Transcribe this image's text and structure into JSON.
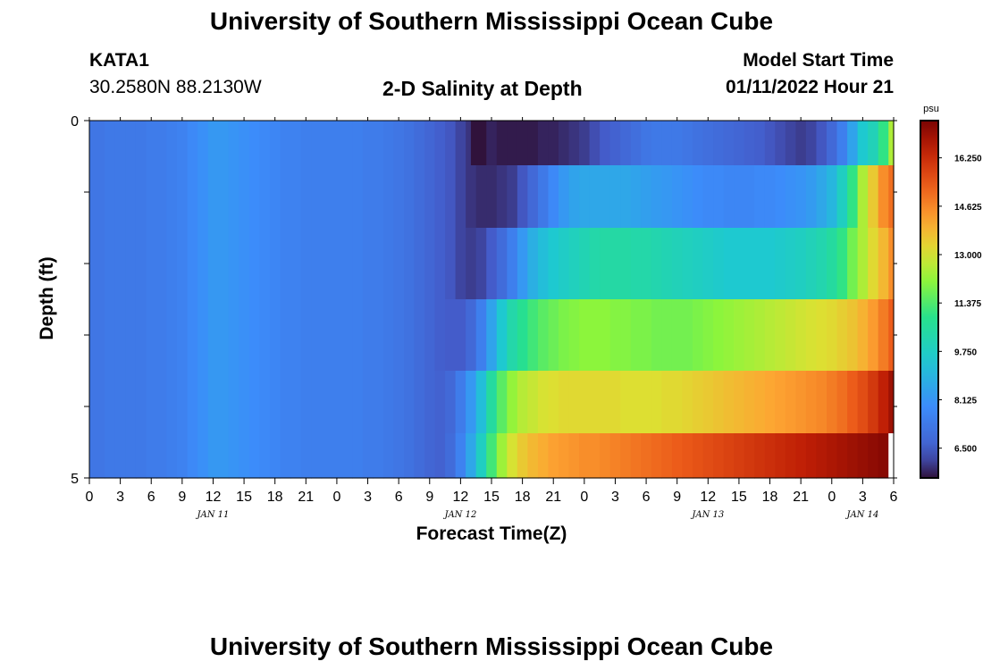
{
  "header": {
    "title": "University of Southern Mississippi Ocean Cube",
    "station_id": "KATA1",
    "station_coords": "30.2580N  88.2130W",
    "plot_title": "2-D Salinity at Depth",
    "model_start_label": "Model Start Time",
    "model_start_value": "01/11/2022 Hour 21"
  },
  "footer": {
    "title_repeat": "University of Southern Mississippi Ocean Cube"
  },
  "chart_data": {
    "type": "heatmap",
    "title": "2-D Salinity at Depth",
    "xlabel": "Forecast Time(Z)",
    "ylabel": "Depth (ft)",
    "colorbar_unit": "psu",
    "x_tick_labels": [
      "0",
      "3",
      "6",
      "9",
      "12",
      "15",
      "18",
      "21",
      "0",
      "3",
      "6",
      "9",
      "12",
      "15",
      "18",
      "21",
      "0",
      "3",
      "6",
      "9",
      "12",
      "15",
      "18",
      "21",
      "0",
      "3",
      "6"
    ],
    "day_labels": [
      {
        "label": "JAN 11",
        "hour": 12
      },
      {
        "label": "JAN 12",
        "hour": 36
      },
      {
        "label": "JAN 13",
        "hour": 60
      },
      {
        "label": "JAN 14",
        "hour": 75
      }
    ],
    "x_range_hours": [
      0,
      78
    ],
    "y_ticks": [
      "0",
      "5"
    ],
    "y_range_ft": [
      0,
      5
    ],
    "colorbar_ticks": [
      "16.250",
      "14.625",
      "13.000",
      "11.375",
      "9.750",
      "8.125",
      "6.500"
    ],
    "colorbar_range": [
      5.5,
      17.5
    ],
    "depth_layers_ft": [
      0.25,
      1.0,
      2.0,
      3.0,
      4.0,
      4.75
    ],
    "time_hours": [
      0,
      1,
      2,
      3,
      4,
      5,
      6,
      7,
      8,
      9,
      10,
      11,
      12,
      13,
      14,
      15,
      16,
      17,
      18,
      19,
      20,
      21,
      22,
      23,
      24,
      25,
      26,
      27,
      28,
      29,
      30,
      31,
      32,
      33,
      34,
      35,
      36,
      37,
      38,
      39,
      40,
      41,
      42,
      43,
      44,
      45,
      46,
      47,
      48,
      49,
      50,
      51,
      52,
      53,
      54,
      55,
      56,
      57,
      58,
      59,
      60,
      61,
      62,
      63,
      64,
      65,
      66,
      67,
      68,
      69,
      70,
      71,
      72,
      73,
      74,
      75,
      76,
      77,
      78
    ],
    "salinity": [
      [
        7.2,
        7.2,
        7.3,
        7.3,
        7.3,
        7.3,
        7.4,
        7.4,
        7.5,
        7.6,
        7.8,
        8.0,
        8.2,
        8.2,
        8.1,
        8.0,
        7.9,
        7.8,
        7.7,
        7.6,
        7.6,
        7.5,
        7.5,
        7.5,
        7.5,
        7.5,
        7.5,
        7.4,
        7.4,
        7.3,
        7.2,
        7.1,
        6.9,
        6.7,
        6.5,
        6.3,
        6.1,
        5.9,
        5.7,
        5.7,
        5.6,
        5.6,
        5.6,
        5.6,
        5.7,
        5.7,
        5.8,
        5.9,
        6.0,
        6.2,
        6.4,
        6.6,
        6.8,
        7.0,
        7.2,
        7.3,
        7.3,
        7.3,
        7.2,
        7.1,
        7.0,
        6.9,
        6.8,
        6.7,
        6.6,
        6.5,
        6.3,
        6.2,
        6.1,
        6.0,
        6.1,
        6.3,
        6.8,
        7.5,
        8.5,
        9.5,
        10.0,
        11.0,
        12.5
      ],
      [
        7.2,
        7.2,
        7.3,
        7.3,
        7.3,
        7.3,
        7.4,
        7.4,
        7.5,
        7.6,
        7.8,
        8.0,
        8.2,
        8.2,
        8.1,
        8.0,
        7.9,
        7.8,
        7.7,
        7.6,
        7.6,
        7.5,
        7.5,
        7.5,
        7.5,
        7.5,
        7.5,
        7.4,
        7.4,
        7.3,
        7.2,
        7.1,
        6.9,
        6.7,
        6.5,
        6.3,
        6.1,
        5.9,
        5.8,
        5.8,
        5.9,
        6.0,
        6.3,
        6.8,
        7.3,
        7.8,
        8.2,
        8.5,
        8.6,
        8.6,
        8.6,
        8.6,
        8.6,
        8.5,
        8.4,
        8.3,
        8.2,
        8.1,
        8.0,
        7.9,
        7.8,
        7.8,
        7.7,
        7.7,
        7.7,
        7.8,
        7.8,
        7.9,
        8.0,
        8.1,
        8.3,
        8.6,
        9.0,
        9.8,
        11.0,
        12.5,
        13.5,
        14.5,
        15.0
      ],
      [
        7.2,
        7.2,
        7.3,
        7.3,
        7.3,
        7.3,
        7.4,
        7.4,
        7.5,
        7.6,
        7.8,
        8.0,
        8.2,
        8.2,
        8.1,
        8.0,
        7.9,
        7.8,
        7.7,
        7.6,
        7.6,
        7.5,
        7.5,
        7.5,
        7.5,
        7.5,
        7.5,
        7.4,
        7.4,
        7.3,
        7.2,
        7.1,
        6.9,
        6.7,
        6.5,
        6.3,
        6.1,
        6.0,
        6.1,
        6.4,
        6.9,
        7.5,
        8.2,
        8.8,
        9.2,
        9.5,
        9.7,
        9.9,
        10.1,
        10.3,
        10.4,
        10.4,
        10.4,
        10.3,
        10.3,
        10.2,
        10.1,
        10.0,
        9.9,
        9.8,
        9.7,
        9.6,
        9.5,
        9.5,
        9.5,
        9.5,
        9.5,
        9.6,
        9.7,
        9.8,
        10.0,
        10.2,
        10.5,
        11.0,
        11.8,
        12.5,
        13.2,
        13.8,
        14.5
      ],
      [
        7.2,
        7.2,
        7.3,
        7.3,
        7.3,
        7.3,
        7.4,
        7.4,
        7.5,
        7.6,
        7.8,
        8.0,
        8.2,
        8.2,
        8.1,
        8.0,
        7.9,
        7.8,
        7.7,
        7.6,
        7.6,
        7.5,
        7.5,
        7.5,
        7.5,
        7.5,
        7.5,
        7.4,
        7.4,
        7.3,
        7.2,
        7.1,
        6.9,
        6.7,
        6.5,
        6.4,
        6.4,
        6.8,
        7.5,
        8.5,
        9.5,
        10.3,
        10.8,
        11.2,
        11.5,
        11.7,
        11.9,
        12.0,
        12.1,
        12.1,
        12.1,
        12.0,
        12.0,
        11.9,
        11.9,
        11.8,
        11.8,
        11.8,
        11.8,
        11.9,
        12.0,
        12.1,
        12.2,
        12.3,
        12.4,
        12.5,
        12.6,
        12.7,
        12.8,
        12.9,
        13.0,
        13.1,
        13.2,
        13.4,
        13.6,
        13.9,
        14.3,
        14.8,
        15.3
      ],
      [
        7.2,
        7.2,
        7.3,
        7.3,
        7.3,
        7.3,
        7.4,
        7.4,
        7.5,
        7.6,
        7.8,
        8.0,
        8.2,
        8.2,
        8.1,
        8.0,
        7.9,
        7.8,
        7.7,
        7.6,
        7.6,
        7.5,
        7.5,
        7.5,
        7.5,
        7.5,
        7.5,
        7.4,
        7.4,
        7.3,
        7.2,
        7.1,
        6.9,
        6.7,
        6.6,
        6.8,
        7.4,
        8.2,
        9.2,
        10.5,
        11.5,
        12.2,
        12.6,
        12.8,
        13.0,
        13.1,
        13.2,
        13.2,
        13.2,
        13.2,
        13.2,
        13.2,
        13.1,
        13.1,
        13.1,
        13.1,
        13.2,
        13.2,
        13.3,
        13.4,
        13.5,
        13.6,
        13.7,
        13.8,
        13.9,
        14.0,
        14.1,
        14.2,
        14.3,
        14.4,
        14.5,
        14.6,
        14.8,
        15.0,
        15.3,
        15.6,
        16.0,
        16.5,
        17.0
      ],
      [
        7.2,
        7.2,
        7.3,
        7.3,
        7.3,
        7.3,
        7.4,
        7.4,
        7.5,
        7.6,
        7.8,
        8.0,
        8.2,
        8.2,
        8.1,
        8.0,
        7.9,
        7.8,
        7.7,
        7.6,
        7.6,
        7.5,
        7.5,
        7.5,
        7.5,
        7.5,
        7.5,
        7.4,
        7.4,
        7.3,
        7.2,
        7.1,
        6.9,
        6.7,
        6.6,
        6.9,
        7.6,
        8.6,
        9.8,
        11.2,
        12.3,
        13.0,
        13.5,
        13.8,
        14.0,
        14.2,
        14.3,
        14.4,
        14.5,
        14.5,
        14.6,
        14.7,
        14.8,
        14.9,
        15.0,
        15.1,
        15.2,
        15.3,
        15.4,
        15.5,
        15.6,
        15.7,
        15.8,
        15.9,
        16.0,
        16.1,
        16.2,
        16.3,
        16.4,
        16.5,
        16.6,
        16.7,
        16.8,
        16.9,
        17.0,
        17.1,
        17.2,
        17.3,
        null
      ]
    ],
    "anomaly": {
      "layer": 0,
      "hour_start": 37,
      "hour_end": 38.5,
      "value": 5.0
    }
  }
}
